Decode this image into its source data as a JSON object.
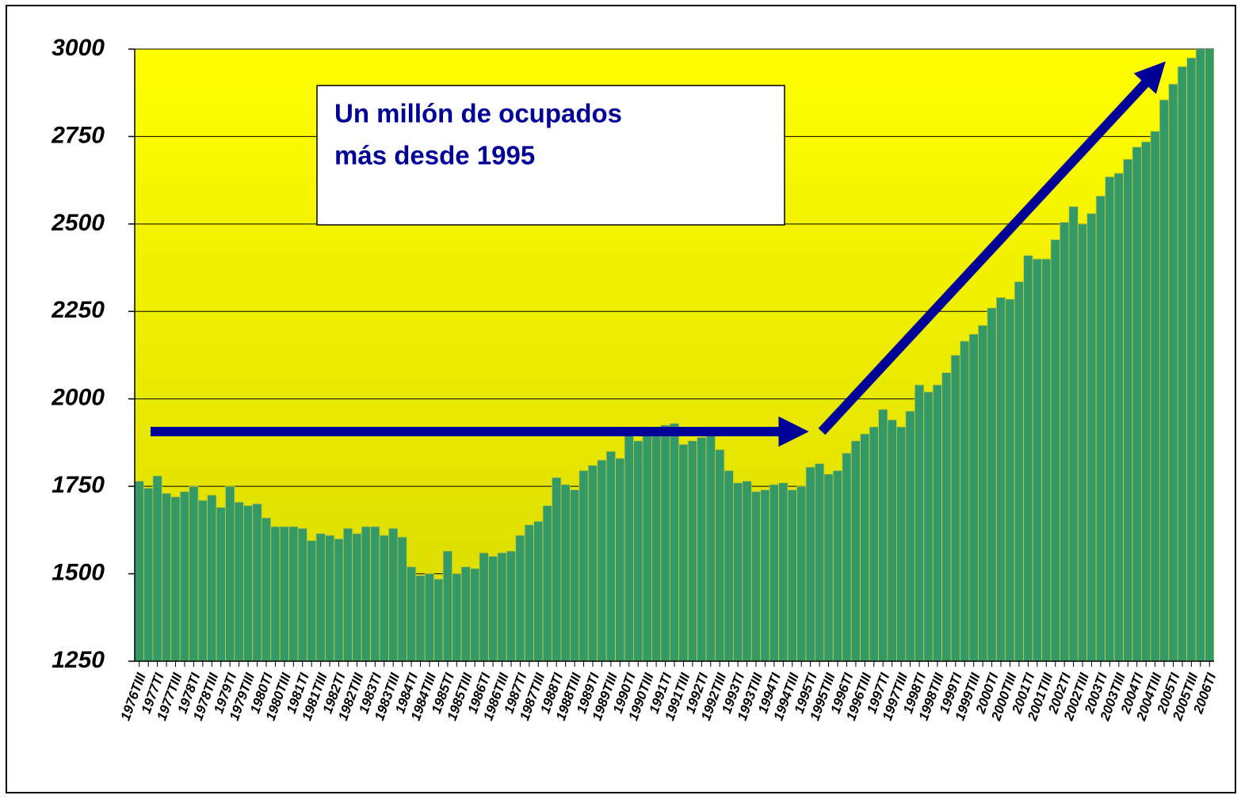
{
  "chart_data": {
    "type": "bar",
    "annotation": [
      "Un millón de ocupados",
      "más desde 1995"
    ],
    "categories": [
      "1976TIII",
      null,
      "1977TI",
      null,
      "1977TIII",
      null,
      "1978TI",
      null,
      "1978TIII",
      null,
      "1979TI",
      null,
      "1979TIII",
      null,
      "1980TI",
      null,
      "1980TIII",
      null,
      "1981TI",
      null,
      "1981TIII",
      null,
      "1982TI",
      null,
      "1982TIII",
      null,
      "1983TI",
      null,
      "1983TIII",
      null,
      "1984TI",
      null,
      "1984TIII",
      null,
      "1985TI",
      null,
      "1985TIII",
      null,
      "1986TI",
      null,
      "1986TIII",
      null,
      "1987TI",
      null,
      "1987TIII",
      null,
      "1988TI",
      null,
      "1988TIII",
      null,
      "1989TI",
      null,
      "1989TIII",
      null,
      "1990TI",
      null,
      "1990TIII",
      null,
      "1991TI",
      null,
      "1991TIII",
      null,
      "1992TI",
      null,
      "1992TIII",
      null,
      "1993TI",
      null,
      "1993TIII",
      null,
      "1994TI",
      null,
      "1994TIII",
      null,
      "1995TI",
      null,
      "1995TIII",
      null,
      "1996TI",
      null,
      "1996TIII",
      null,
      "1997TI",
      null,
      "1997TIII",
      null,
      "1998TI",
      null,
      "1998TIII",
      null,
      "1999TI",
      null,
      "1999TIII",
      null,
      "2000TI",
      null,
      "2000TIII",
      null,
      "2001TI",
      null,
      "2001TIII",
      null,
      "2002TI",
      null,
      "2002TIII",
      null,
      "2003TI",
      null,
      "2003TIII",
      null,
      "2004TI",
      null,
      "2004TIII",
      null,
      "2005TI",
      null,
      "2005TIII",
      null,
      "2006TI"
    ],
    "values": [
      1765,
      1745,
      1780,
      1730,
      1720,
      1735,
      1750,
      1710,
      1725,
      1690,
      1750,
      1705,
      1695,
      1700,
      1660,
      1635,
      1635,
      1635,
      1630,
      1595,
      1615,
      1610,
      1600,
      1630,
      1615,
      1635,
      1635,
      1610,
      1630,
      1605,
      1520,
      1495,
      1500,
      1485,
      1565,
      1500,
      1520,
      1515,
      1560,
      1550,
      1560,
      1565,
      1610,
      1640,
      1650,
      1695,
      1775,
      1755,
      1740,
      1795,
      1810,
      1825,
      1850,
      1830,
      1900,
      1880,
      1895,
      1910,
      1925,
      1930,
      1870,
      1880,
      1890,
      1900,
      1855,
      1795,
      1760,
      1765,
      1735,
      1740,
      1755,
      1760,
      1740,
      1750,
      1805,
      1815,
      1785,
      1795,
      1845,
      1880,
      1900,
      1920,
      1970,
      1940,
      1920,
      1965,
      2040,
      2020,
      2040,
      2075,
      2125,
      2165,
      2185,
      2210,
      2260,
      2290,
      2285,
      2335,
      2410,
      2400,
      2400,
      2455,
      2505,
      2550,
      2500,
      2530,
      2580,
      2635,
      2645,
      2685,
      2720,
      2735,
      2765,
      2855,
      2900,
      2950,
      2975,
      3005,
      3015
    ],
    "color": "#339966",
    "ylim": [
      1250,
      3000
    ],
    "yticks": [
      1250,
      1500,
      1750,
      2000,
      2250,
      2500,
      2750,
      3000
    ],
    "grid": true
  }
}
